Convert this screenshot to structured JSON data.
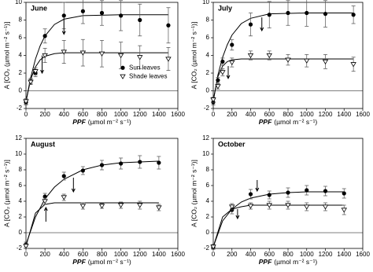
{
  "chart_data": [
    {
      "type": "scatter",
      "title": "June",
      "xlabel_var": "PPF",
      "xlabel_unit": "(µmol m⁻² s⁻¹)",
      "ylabel": "A [CO₂ (µmol m⁻² s⁻¹)]",
      "xlim": [
        0,
        1600
      ],
      "xticks": [
        0,
        200,
        400,
        600,
        800,
        1000,
        1200,
        1400,
        1600
      ],
      "ylim": [
        -2,
        10
      ],
      "yticks": [
        -2,
        0,
        2,
        4,
        6,
        8,
        10
      ],
      "zero_line": true,
      "legend": "center right",
      "x": [
        0,
        50,
        100,
        200,
        400,
        600,
        800,
        1000,
        1200,
        1500
      ],
      "series": [
        {
          "name": "Sun leaves",
          "color": "#000000",
          "marker": "circle",
          "values": [
            -1.3,
            1.1,
            2.0,
            6.2,
            8.5,
            9.0,
            8.8,
            8.5,
            8.0,
            7.4
          ],
          "errors": [
            0.3,
            0.3,
            0.4,
            0.8,
            1.5,
            1.4,
            1.4,
            1.7,
            1.8,
            2.0
          ]
        },
        {
          "name": "Shade leaves",
          "color": "#000000",
          "marker": "triangle-down",
          "values": [
            -1.2,
            1.0,
            2.2,
            4.0,
            4.4,
            4.3,
            4.2,
            4.0,
            3.8,
            3.6
          ],
          "errors": [
            0.3,
            0.3,
            0.4,
            0.8,
            1.3,
            1.5,
            1.5,
            1.5,
            1.3,
            1.3
          ]
        }
      ],
      "fits": [
        {
          "x": [
            0,
            50,
            100,
            150,
            200,
            300,
            400,
            600,
            1000,
            1500
          ],
          "values": [
            -1.2,
            1.5,
            3.6,
            5.1,
            6.2,
            7.5,
            8.1,
            8.5,
            8.6,
            8.6
          ]
        },
        {
          "x": [
            0,
            50,
            100,
            150,
            200,
            300,
            400,
            600,
            1000,
            1500
          ],
          "values": [
            -1.2,
            1.3,
            2.7,
            3.5,
            3.9,
            4.2,
            4.3,
            4.3,
            4.3,
            4.3
          ]
        }
      ],
      "arrows": [
        {
          "x": 400,
          "y_from": 8.2,
          "y_to": 6.4
        },
        {
          "x": 170,
          "y_from": 4.0,
          "y_to": 2.0
        }
      ]
    },
    {
      "type": "scatter",
      "title": "July",
      "xlabel_var": "PPF",
      "xlabel_unit": "(µmol m⁻² s⁻¹)",
      "ylabel": "A [CO₂ (µmol m⁻² s⁻¹)]",
      "xlim": [
        0,
        1600
      ],
      "xticks": [
        0,
        200,
        400,
        600,
        800,
        1000,
        1200,
        1400,
        1600
      ],
      "ylim": [
        -2,
        10
      ],
      "yticks": [
        -2,
        0,
        2,
        4,
        6,
        8,
        10
      ],
      "zero_line": true,
      "x": [
        0,
        50,
        100,
        200,
        400,
        600,
        800,
        1000,
        1200,
        1500
      ],
      "series": [
        {
          "color": "#000000",
          "marker": "circle",
          "values": [
            -1.3,
            1.2,
            3.3,
            5.2,
            7.5,
            8.6,
            8.8,
            8.8,
            8.7,
            8.6
          ],
          "errors": [
            0.3,
            0.3,
            0.4,
            0.6,
            1.3,
            1.5,
            1.4,
            1.5,
            1.5,
            1.0
          ]
        },
        {
          "color": "#000000",
          "marker": "triangle-down",
          "values": [
            -1.0,
            0.5,
            2.1,
            3.2,
            4.0,
            4.0,
            3.5,
            3.4,
            3.3,
            3.0
          ],
          "errors": [
            0.3,
            0.3,
            0.4,
            0.5,
            0.5,
            0.5,
            0.6,
            0.7,
            0.8,
            0.8
          ]
        }
      ],
      "fits": [
        {
          "x": [
            0,
            50,
            100,
            150,
            200,
            300,
            400,
            600,
            1000,
            1500
          ],
          "values": [
            -1.2,
            1.8,
            3.8,
            5.2,
            6.3,
            7.6,
            8.2,
            8.7,
            8.8,
            8.8
          ]
        },
        {
          "x": [
            0,
            50,
            100,
            150,
            200,
            300,
            400,
            600,
            1000,
            1500
          ],
          "values": [
            -1.0,
            1.6,
            2.8,
            3.3,
            3.5,
            3.6,
            3.6,
            3.6,
            3.6,
            3.6
          ]
        }
      ],
      "arrows": [
        {
          "x": 520,
          "y_from": 8.3,
          "y_to": 6.8
        },
        {
          "x": 160,
          "y_from": 2.8,
          "y_to": 1.4
        }
      ]
    },
    {
      "type": "scatter",
      "title": "August",
      "xlabel_var": "PPF",
      "xlabel_unit": "(µmol m⁻² s⁻¹)",
      "ylabel": "A [CO₂ (µmol m⁻² s⁻¹)]",
      "xlim": [
        0,
        1600
      ],
      "xticks": [
        0,
        200,
        400,
        600,
        800,
        1000,
        1200,
        1400,
        1600
      ],
      "ylim": [
        -2,
        12
      ],
      "yticks": [
        -2,
        0,
        2,
        4,
        6,
        8,
        10,
        12
      ],
      "zero_line": true,
      "x": [
        0,
        200,
        400,
        600,
        800,
        1000,
        1200,
        1400
      ],
      "series": [
        {
          "color": "#000000",
          "marker": "circle",
          "values": [
            -1.5,
            4.6,
            7.2,
            7.9,
            8.6,
            8.8,
            9.0,
            8.9
          ],
          "errors": [
            0.3,
            0.4,
            0.5,
            0.5,
            0.6,
            0.7,
            0.8,
            0.8
          ]
        },
        {
          "color": "#000000",
          "marker": "triangle-down",
          "values": [
            -1.7,
            4.0,
            4.5,
            3.4,
            3.4,
            3.5,
            3.5,
            3.2
          ],
          "errors": [
            0.3,
            0.4,
            0.4,
            0.4,
            0.3,
            0.4,
            0.5,
            0.4
          ]
        }
      ],
      "fits": [
        {
          "x": [
            0,
            100,
            200,
            300,
            400,
            600,
            800,
            1000,
            1200,
            1400
          ],
          "values": [
            -1.5,
            2.0,
            4.3,
            5.8,
            6.8,
            8.0,
            8.6,
            8.9,
            9.0,
            9.1
          ]
        },
        {
          "x": [
            0,
            100,
            200,
            300,
            400,
            600,
            800,
            1000,
            1200,
            1400
          ],
          "values": [
            -1.7,
            2.5,
            3.6,
            3.8,
            3.8,
            3.8,
            3.8,
            3.8,
            3.8,
            3.8
          ]
        }
      ],
      "arrows": [
        {
          "x": 500,
          "y_from": 7.0,
          "y_to": 5.2
        },
        {
          "x": 210,
          "y_from": 1.4,
          "y_to": 3.2
        }
      ]
    },
    {
      "type": "scatter",
      "title": "October",
      "xlabel_var": "PPF",
      "xlabel_unit": "(µmol m⁻² s⁻¹)",
      "ylabel": "A [CO₂ (µmol m⁻² s⁻¹)]",
      "xlim": [
        0,
        1600
      ],
      "xticks": [
        0,
        200,
        400,
        600,
        800,
        1000,
        1200,
        1400,
        1600
      ],
      "ylim": [
        -2,
        12
      ],
      "yticks": [
        -2,
        0,
        2,
        4,
        6,
        8,
        10,
        12
      ],
      "zero_line": true,
      "x": [
        0,
        200,
        400,
        600,
        800,
        1000,
        1200,
        1400
      ],
      "series": [
        {
          "color": "#000000",
          "marker": "circle",
          "values": [
            -1.8,
            2.9,
            4.9,
            4.8,
            5.1,
            5.4,
            5.3,
            5.0
          ],
          "errors": [
            0.3,
            0.5,
            0.6,
            0.5,
            0.6,
            0.6,
            0.6,
            0.6
          ]
        },
        {
          "color": "#000000",
          "marker": "triangle-down",
          "values": [
            -1.8,
            3.3,
            3.4,
            3.5,
            3.5,
            3.3,
            3.3,
            2.9
          ],
          "errors": [
            0.3,
            0.4,
            0.4,
            0.5,
            0.5,
            0.5,
            0.5,
            0.6
          ]
        }
      ],
      "fits": [
        {
          "x": [
            0,
            100,
            200,
            300,
            400,
            600,
            800,
            1000,
            1200,
            1400
          ],
          "values": [
            -1.8,
            1.5,
            3.0,
            3.9,
            4.4,
            4.9,
            5.1,
            5.2,
            5.2,
            5.2
          ]
        },
        {
          "x": [
            0,
            100,
            200,
            300,
            400,
            600,
            800,
            1000,
            1200,
            1400
          ],
          "values": [
            -1.8,
            2.0,
            3.0,
            3.3,
            3.5,
            3.5,
            3.5,
            3.5,
            3.5,
            3.5
          ]
        }
      ],
      "arrows": [
        {
          "x": 470,
          "y_from": 6.7,
          "y_to": 5.3
        },
        {
          "x": 260,
          "y_from": 3.0,
          "y_to": 1.8
        }
      ]
    }
  ]
}
